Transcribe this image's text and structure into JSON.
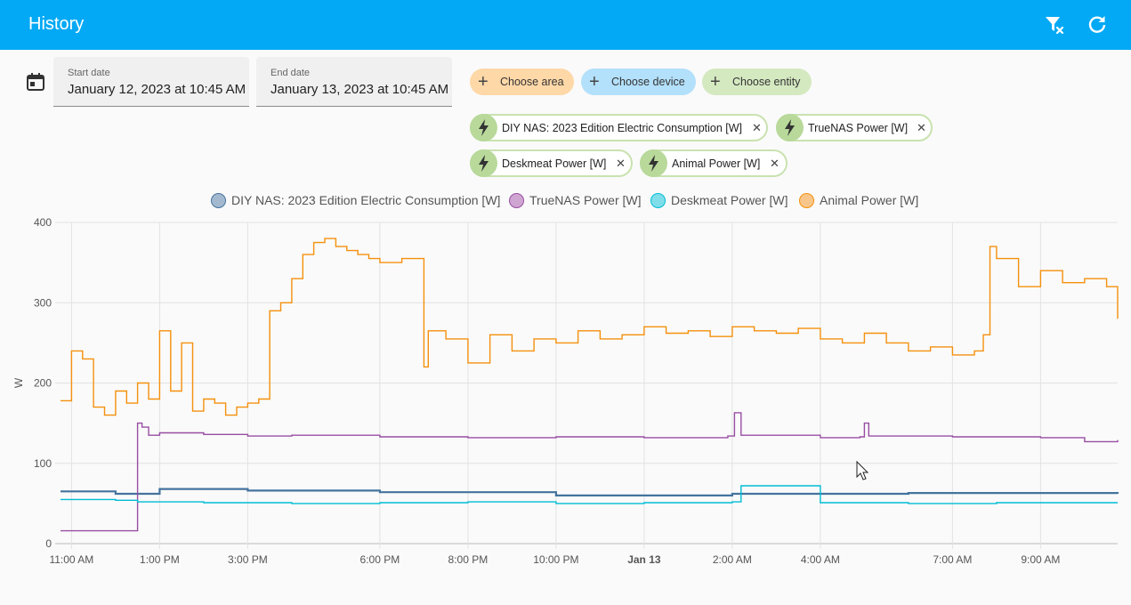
{
  "header": {
    "title": "History",
    "clear_filter_icon": "filter-remove-icon",
    "refresh_icon": "refresh-icon"
  },
  "dates": {
    "icon": "calendar-icon",
    "start": {
      "label": "Start date",
      "value": "January 12, 2023 at 10:45 AM"
    },
    "end": {
      "label": "End date",
      "value": "January 13, 2023 at 10:45 AM"
    }
  },
  "pickers": [
    {
      "label": "Choose area",
      "color": "#ffd8a8"
    },
    {
      "label": "Choose device",
      "color": "#b3e0fb"
    },
    {
      "label": "Choose entity",
      "color": "#d4e9c0"
    }
  ],
  "chips": [
    {
      "label": "DIY NAS: 2023 Edition Electric Consumption [W]"
    },
    {
      "label": "TrueNAS Power [W]"
    },
    {
      "label": "Deskmeat Power [W]"
    },
    {
      "label": "Animal Power [W]"
    }
  ],
  "chart_data": {
    "type": "line",
    "ylabel": "W",
    "ylim": [
      0,
      400
    ],
    "yticks": [
      "0",
      "100",
      "200",
      "300",
      "400"
    ],
    "xlim": [
      10.75,
      34.75
    ],
    "xticks": [
      {
        "label": "11:00 AM",
        "x": 11,
        "bold": false
      },
      {
        "label": "1:00 PM",
        "x": 13,
        "bold": false
      },
      {
        "label": "3:00 PM",
        "x": 15,
        "bold": false
      },
      {
        "label": "6:00 PM",
        "x": 18,
        "bold": false
      },
      {
        "label": "8:00 PM",
        "x": 20,
        "bold": false
      },
      {
        "label": "10:00 PM",
        "x": 22,
        "bold": false
      },
      {
        "label": "Jan 13",
        "x": 24,
        "bold": true
      },
      {
        "label": "2:00 AM",
        "x": 26,
        "bold": false
      },
      {
        "label": "4:00 AM",
        "x": 28,
        "bold": false
      },
      {
        "label": "7:00 AM",
        "x": 31,
        "bold": false
      },
      {
        "label": "9:00 AM",
        "x": 33,
        "bold": false
      }
    ],
    "series": [
      {
        "name": "DIY NAS: 2023 Edition Electric Consumption [W]",
        "color": "#44739e",
        "fill": "#a3b9cf",
        "x": [
          10.75,
          12.0,
          13.0,
          15.0,
          18.0,
          22.0,
          26.0,
          30.0,
          34.75
        ],
        "y": [
          65,
          62,
          68,
          66,
          64,
          60,
          62,
          63,
          62
        ]
      },
      {
        "name": "TrueNAS Power [W]",
        "color": "#984ea3",
        "fill": "#cfa6d1",
        "x": [
          10.75,
          11.0,
          11.5,
          12.0,
          12.45,
          12.5,
          12.6,
          12.75,
          13.0,
          14.0,
          15.0,
          16.0,
          18.0,
          20.0,
          22.0,
          24.0,
          25.9,
          26.05,
          26.2,
          28.0,
          28.9,
          29.0,
          29.1,
          31.0,
          33.0,
          34.0,
          34.75
        ],
        "y": [
          16,
          16,
          16,
          16,
          16,
          150,
          145,
          135,
          138,
          136,
          134,
          135,
          133,
          132,
          133,
          132,
          134,
          163,
          135,
          132,
          133,
          150,
          134,
          133,
          132,
          127,
          129
        ]
      },
      {
        "name": "Deskmeat Power [W]",
        "color": "#00bcd4",
        "fill": "#80deea",
        "x": [
          10.75,
          12.0,
          12.5,
          14.0,
          16.0,
          18.0,
          20.0,
          22.0,
          24.0,
          26.0,
          26.2,
          28.0,
          30.0,
          32.0,
          34.75
        ],
        "y": [
          55,
          54,
          52,
          51,
          50,
          51,
          52,
          50,
          51,
          52,
          72,
          51,
          50,
          51,
          51
        ]
      },
      {
        "name": "Animal Power [W]",
        "color": "#f5900d",
        "fill": "#f9c68a",
        "x": [
          10.75,
          11.0,
          11.25,
          11.5,
          11.75,
          12.0,
          12.25,
          12.5,
          12.75,
          13.0,
          13.25,
          13.5,
          13.75,
          14.0,
          14.25,
          14.5,
          14.75,
          15.0,
          15.25,
          15.5,
          15.75,
          16.0,
          16.25,
          16.5,
          16.75,
          17.0,
          17.25,
          17.5,
          17.75,
          18.0,
          18.25,
          18.5,
          18.75,
          19.0,
          19.1,
          19.5,
          20.0,
          20.5,
          21.0,
          21.5,
          22.0,
          22.5,
          23.0,
          23.5,
          24.0,
          24.5,
          25.0,
          25.5,
          26.0,
          26.5,
          27.0,
          27.5,
          28.0,
          28.5,
          29.0,
          29.5,
          30.0,
          30.5,
          31.0,
          31.5,
          31.7,
          31.85,
          32.0,
          32.5,
          33.0,
          33.5,
          34.0,
          34.5,
          34.75
        ],
        "y": [
          178,
          240,
          230,
          170,
          160,
          190,
          175,
          200,
          180,
          265,
          190,
          250,
          165,
          180,
          175,
          160,
          170,
          175,
          180,
          290,
          300,
          330,
          360,
          375,
          380,
          370,
          365,
          360,
          355,
          350,
          350,
          355,
          355,
          220,
          265,
          255,
          225,
          260,
          240,
          255,
          250,
          265,
          255,
          260,
          270,
          262,
          265,
          258,
          270,
          265,
          262,
          268,
          255,
          250,
          262,
          250,
          240,
          245,
          235,
          240,
          260,
          370,
          355,
          320,
          340,
          325,
          330,
          320,
          280
        ]
      }
    ]
  }
}
